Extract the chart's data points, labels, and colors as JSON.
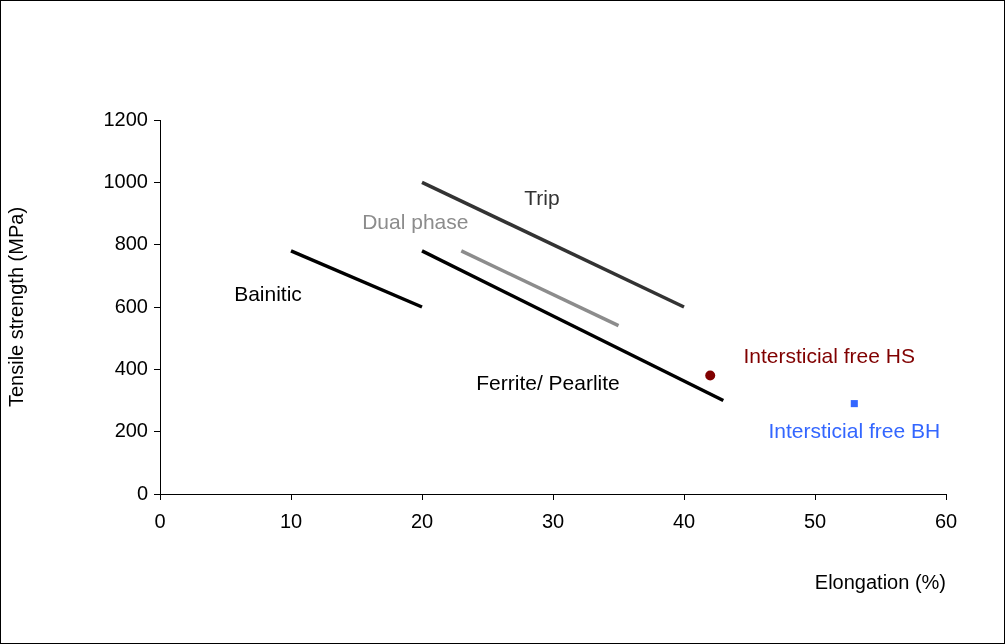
{
  "chart_data": {
    "type": "line",
    "xlabel": "Elongation (%)",
    "ylabel": "Tensile strength (MPa)",
    "xlim": [
      0,
      60
    ],
    "xticks": [
      0,
      10,
      20,
      30,
      40,
      50,
      60
    ],
    "ylim": [
      0,
      1200
    ],
    "yticks": [
      0,
      200,
      400,
      600,
      800,
      1000,
      1200
    ],
    "grid": false,
    "legend": false,
    "series": [
      {
        "name": "Bainitic",
        "marker": "none",
        "color": "#000000",
        "x": [
          10,
          20
        ],
        "values": [
          780,
          600
        ]
      },
      {
        "name": "Ferrite/ Pearlite",
        "marker": "none",
        "color": "#000000",
        "x": [
          20,
          43
        ],
        "values": [
          780,
          300
        ]
      },
      {
        "name": "Dual phase",
        "marker": "none",
        "color": "#8c8c8c",
        "x": [
          23,
          35
        ],
        "values": [
          780,
          540
        ]
      },
      {
        "name": "Trip",
        "marker": "none",
        "color": "#333333",
        "x": [
          20,
          40
        ],
        "values": [
          1000,
          600
        ]
      },
      {
        "name": "Intersticial free HS",
        "type": "scatter",
        "marker": "circle",
        "color": "#800000",
        "x": [
          42
        ],
        "values": [
          380
        ]
      },
      {
        "name": "Intersticial free BH",
        "type": "scatter",
        "marker": "square",
        "color": "#3366ff",
        "x": [
          53
        ],
        "values": [
          290
        ]
      }
    ]
  }
}
